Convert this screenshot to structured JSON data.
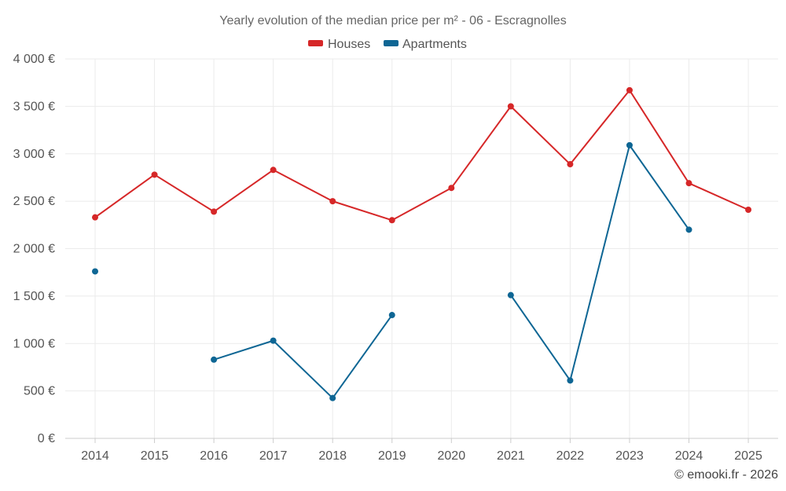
{
  "chart_data": {
    "type": "line",
    "title": "Yearly evolution of the median price per m² - 06 - Escragnolles",
    "categories": [
      "2014",
      "2015",
      "2016",
      "2017",
      "2018",
      "2019",
      "2020",
      "2021",
      "2022",
      "2023",
      "2024",
      "2025"
    ],
    "y_ticks": [
      "0 €",
      "500 €",
      "1 000 €",
      "1 500 €",
      "2 000 €",
      "2 500 €",
      "3 000 €",
      "3 500 €",
      "4 000 €"
    ],
    "ylim": [
      0,
      4000
    ],
    "y_step": 500,
    "grid": true,
    "legend_position": "top-center",
    "series": [
      {
        "name": "Houses",
        "color": "#d62728",
        "values": [
          2330,
          2780,
          2390,
          2830,
          2500,
          2300,
          2640,
          3500,
          2890,
          3670,
          2690,
          2410
        ]
      },
      {
        "name": "Apartments",
        "color": "#0e6694",
        "values": [
          1760,
          null,
          830,
          1030,
          425,
          1300,
          null,
          1510,
          610,
          3090,
          2200,
          null
        ]
      }
    ],
    "credit": "© emooki.fr - 2026"
  }
}
